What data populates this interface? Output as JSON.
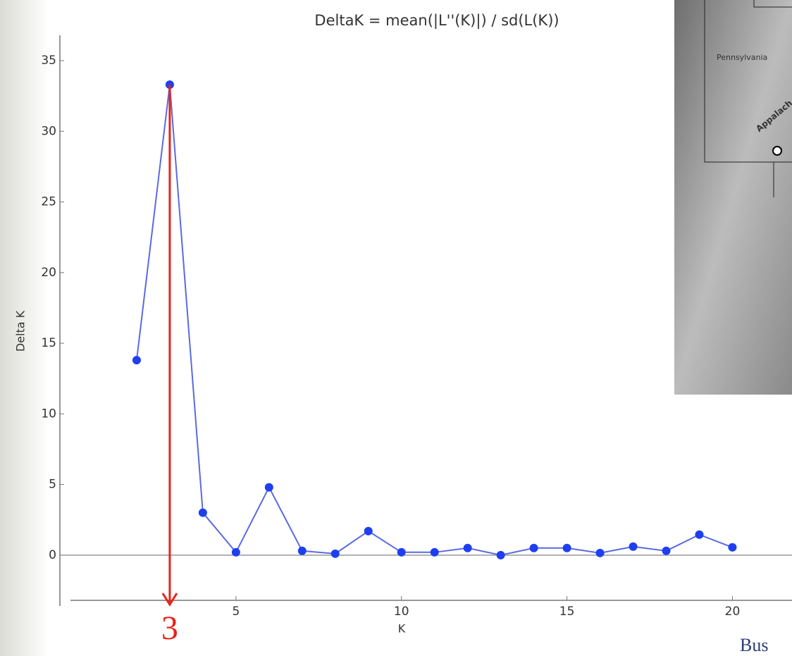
{
  "chart_data": {
    "type": "line",
    "title": "DeltaK = mean(|L''(K)|) / sd(L(K))",
    "x_label": "K",
    "y_label": "Delta K",
    "x": [
      2,
      3,
      4,
      5,
      6,
      7,
      8,
      9,
      10,
      11,
      12,
      13,
      14,
      15,
      16,
      17,
      18,
      19,
      20
    ],
    "series": [
      {
        "color": "#1e3ff0",
        "values": [
          13.8,
          33.3,
          3.0,
          0.2,
          4.8,
          0.3,
          0.1,
          1.7,
          0.2,
          0.2,
          0.5,
          0.0,
          0.5,
          0.5,
          0.15,
          0.6,
          0.3,
          1.45,
          0.55
        ]
      }
    ],
    "xlim": [
      0,
      21.8
    ],
    "ylim": [
      -3.6,
      36.8
    ],
    "xticks": [
      5,
      10,
      15,
      20
    ],
    "yticks": [
      0,
      5,
      10,
      15,
      20,
      25,
      30,
      35
    ],
    "annotation": 3,
    "annotation_color": "#e8231c"
  },
  "map": {
    "labels": [
      "Pennsylvania",
      "Appalach"
    ]
  },
  "footer": "Bus"
}
